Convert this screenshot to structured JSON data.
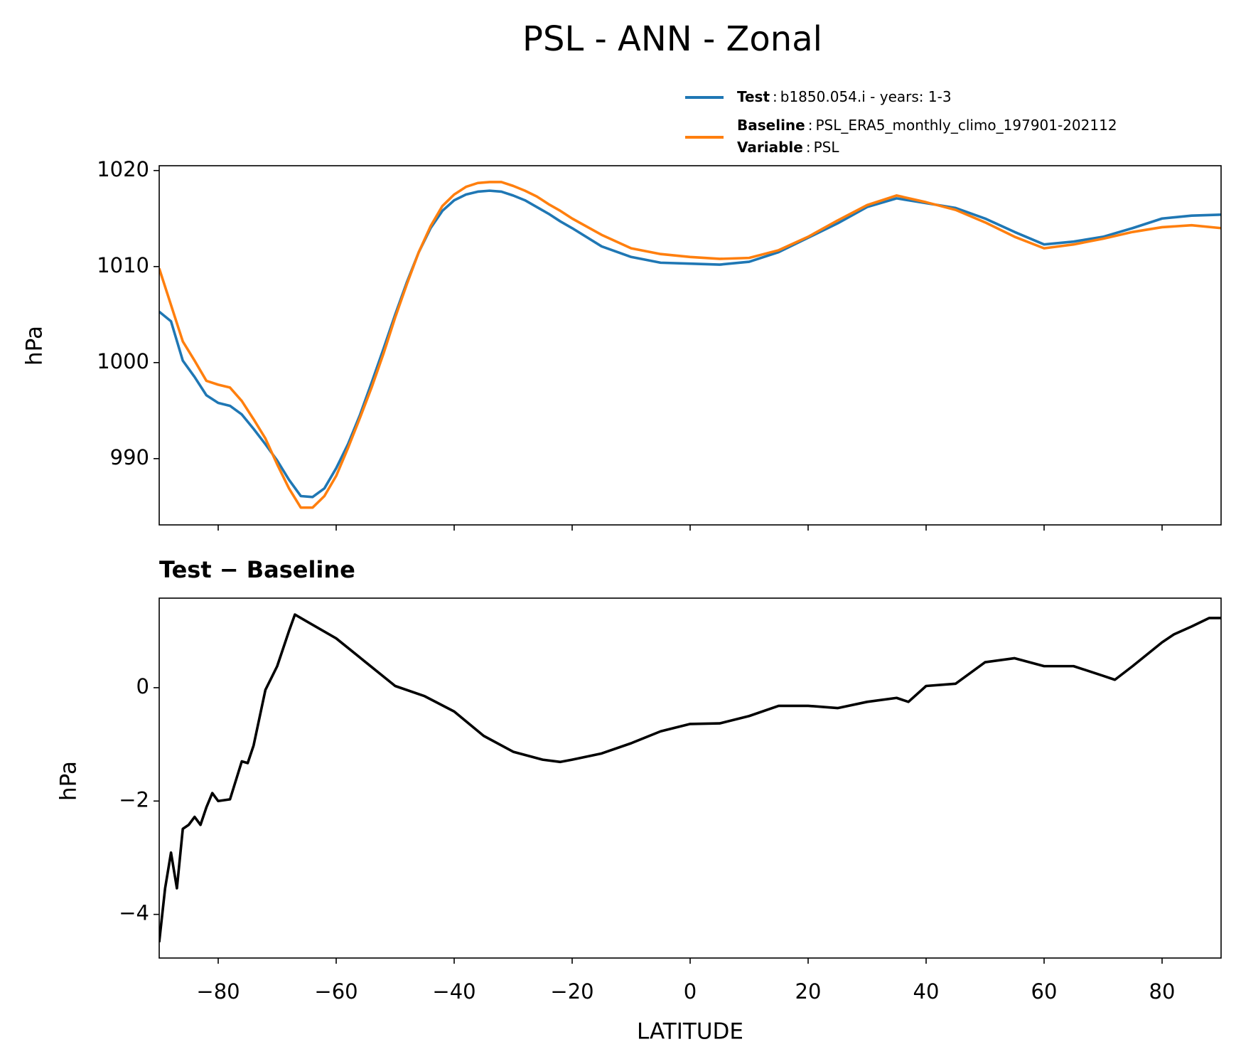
{
  "chart_data": [
    {
      "type": "line",
      "title": "PSL - ANN - Zonal",
      "ylabel": "hPa",
      "separator": ":",
      "x": [
        -90,
        -88,
        -86,
        -84,
        -82,
        -80,
        -78,
        -76,
        -74,
        -72,
        -70,
        -68,
        -66,
        -64,
        -62,
        -60,
        -58,
        -56,
        -54,
        -52,
        -50,
        -48,
        -46,
        -44,
        -42,
        -40,
        -38,
        -36,
        -34,
        -32,
        -30,
        -28,
        -26,
        -24,
        -22,
        -20,
        -15,
        -10,
        -5,
        0,
        5,
        10,
        15,
        20,
        25,
        30,
        35,
        40,
        45,
        50,
        55,
        60,
        65,
        70,
        75,
        80,
        85,
        90
      ],
      "series": [
        {
          "name": "Test",
          "description": "b1850.054.i - years: 1-3",
          "color": "#1f77b4",
          "values": [
            1005.3,
            1004.3,
            1000.2,
            998.5,
            996.6,
            995.8,
            995.5,
            994.6,
            993.1,
            991.5,
            989.8,
            987.8,
            986.1,
            986.0,
            986.9,
            989.0,
            991.5,
            994.5,
            997.9,
            1001.4,
            1005.0,
            1008.4,
            1011.5,
            1014.0,
            1015.8,
            1016.9,
            1017.5,
            1017.8,
            1017.9,
            1017.8,
            1017.4,
            1016.9,
            1016.2,
            1015.5,
            1014.7,
            1014.0,
            1012.1,
            1011.0,
            1010.4,
            1010.3,
            1010.2,
            1010.5,
            1011.5,
            1013.0,
            1014.5,
            1016.2,
            1017.1,
            1016.6,
            1016.1,
            1015.0,
            1013.6,
            1012.3,
            1012.6,
            1013.1,
            1014.0,
            1015.0,
            1015.3,
            1015.4
          ]
        },
        {
          "name": "Baseline",
          "description": "PSL_ERA5_monthly_climo_197901-202112",
          "color": "#ff7f0e",
          "values": [
            1009.8,
            1006.0,
            1002.2,
            1000.2,
            998.1,
            997.7,
            997.4,
            996.0,
            994.1,
            992.1,
            989.4,
            986.9,
            984.9,
            984.9,
            986.1,
            988.2,
            991.1,
            994.2,
            997.4,
            1000.9,
            1004.7,
            1008.2,
            1011.5,
            1014.2,
            1016.3,
            1017.5,
            1018.3,
            1018.7,
            1018.8,
            1018.8,
            1018.4,
            1017.9,
            1017.3,
            1016.5,
            1015.8,
            1015.0,
            1013.3,
            1011.9,
            1011.3,
            1011.0,
            1010.8,
            1010.9,
            1011.7,
            1013.1,
            1014.8,
            1016.4,
            1017.4,
            1016.7,
            1015.9,
            1014.6,
            1013.1,
            1011.9,
            1012.3,
            1012.9,
            1013.6,
            1014.1,
            1014.3,
            1014.0
          ]
        }
      ],
      "variable": {
        "name": "Variable",
        "value": "PSL"
      },
      "xlim": [
        -90,
        90
      ],
      "xticks": [
        -80,
        -60,
        -40,
        -20,
        0,
        20,
        40,
        60,
        80
      ],
      "ylim": [
        983.1,
        1020.5
      ],
      "yticks": [
        990,
        1000,
        1010,
        1020
      ]
    },
    {
      "type": "line",
      "title": "Test − Baseline",
      "ylabel": "hPa",
      "xlabel": "LATITUDE",
      "color": "#000000",
      "x": [
        -90,
        -89,
        -88,
        -87,
        -86,
        -85,
        -84,
        -83,
        -82,
        -81,
        -80,
        -78,
        -76,
        -75,
        -74,
        -72,
        -70,
        -68,
        -67,
        -65,
        -60,
        -55,
        -50,
        -45,
        -40,
        -35,
        -30,
        -25,
        -22,
        -20,
        -15,
        -10,
        -5,
        0,
        5,
        10,
        15,
        20,
        25,
        30,
        35,
        37,
        40,
        45,
        50,
        55,
        60,
        65,
        70,
        72,
        75,
        80,
        82,
        85,
        88,
        90
      ],
      "values": [
        -4.49,
        -3.54,
        -2.91,
        -3.54,
        -2.49,
        -2.42,
        -2.28,
        -2.42,
        -2.11,
        -1.86,
        -2.0,
        -1.97,
        -1.3,
        -1.33,
        -1.02,
        -0.04,
        0.38,
        1.0,
        1.29,
        1.17,
        0.87,
        0.45,
        0.03,
        -0.15,
        -0.42,
        -0.85,
        -1.13,
        -1.27,
        -1.31,
        -1.27,
        -1.16,
        -0.98,
        -0.77,
        -0.64,
        -0.63,
        -0.5,
        -0.32,
        -0.32,
        -0.36,
        -0.25,
        -0.18,
        -0.25,
        0.03,
        0.07,
        0.45,
        0.52,
        0.38,
        0.38,
        0.21,
        0.14,
        0.38,
        0.8,
        0.94,
        1.08,
        1.23,
        1.23
      ],
      "xlim": [
        -90,
        90
      ],
      "xticks": [
        {
          "value": -80,
          "label": "−80"
        },
        {
          "value": -60,
          "label": "−60"
        },
        {
          "value": -40,
          "label": "−40"
        },
        {
          "value": -20,
          "label": "−20"
        },
        0,
        20,
        40,
        60,
        80
      ],
      "ylim": [
        -4.77,
        1.58
      ],
      "yticks": [
        {
          "value": -4,
          "label": "−4"
        },
        {
          "value": -2,
          "label": "−2"
        },
        0
      ]
    }
  ]
}
